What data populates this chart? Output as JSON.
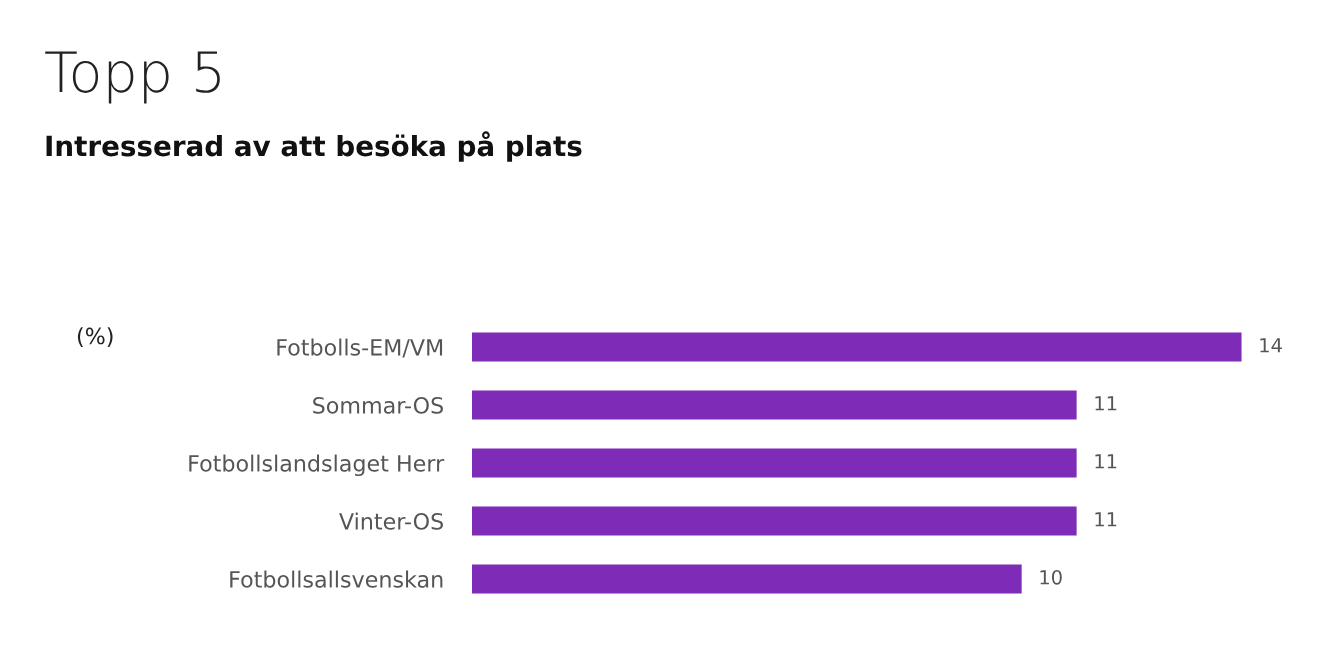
{
  "chart_data": {
    "type": "bar",
    "orientation": "horizontal",
    "title": "Topp 5",
    "subtitle": "Intresserad av att besöka på plats",
    "annotations": [
      "(%)"
    ],
    "categories": [
      "Fotbolls-EM/VM",
      "Sommar-OS",
      "Fotbollslandslaget Herr",
      "Vinter-OS",
      "Fotbollsallsvenskan"
    ],
    "values": [
      14,
      11,
      11,
      11,
      10
    ],
    "color": "#7e2bb8",
    "data_labels": true,
    "tick_labels": "y",
    "grid": false,
    "legend": false
  }
}
